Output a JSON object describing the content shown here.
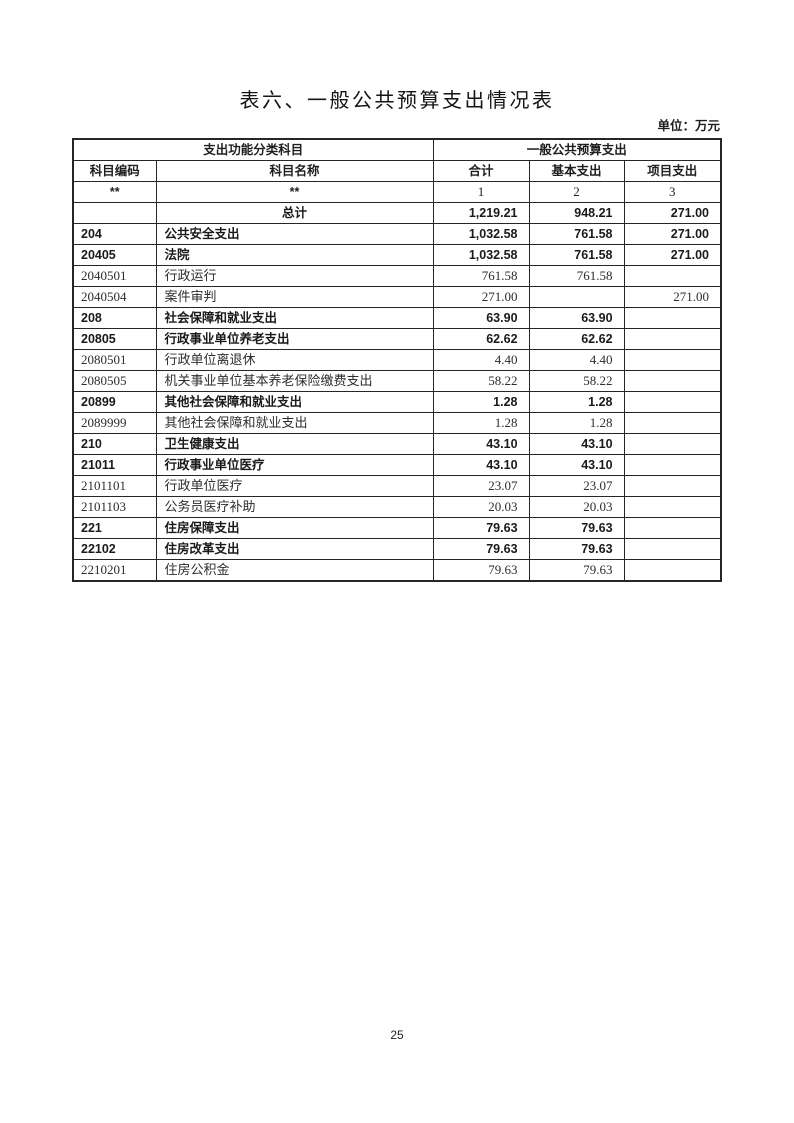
{
  "page": {
    "title": "表六、一般公共预算支出情况表",
    "unit_label": "单位：万元",
    "page_number": "25"
  },
  "table": {
    "group_headers": {
      "left": "支出功能分类科目",
      "right": "一般公共预算支出"
    },
    "columns": [
      "科目编码",
      "科目名称",
      "合计",
      "基本支出",
      "项目支出"
    ],
    "code_row": [
      "**",
      "**",
      "1",
      "2",
      "3"
    ],
    "rows": [
      {
        "code": "",
        "name": "总计",
        "total": "1,219.21",
        "basic": "948.21",
        "project": "271.00",
        "emphasis": true,
        "name_align": "center"
      },
      {
        "code": "204",
        "name": "公共安全支出",
        "total": "1,032.58",
        "basic": "761.58",
        "project": "271.00",
        "emphasis": true
      },
      {
        "code": "20405",
        "name": "法院",
        "total": "1,032.58",
        "basic": "761.58",
        "project": "271.00",
        "emphasis": true
      },
      {
        "code": "2040501",
        "name": "行政运行",
        "total": "761.58",
        "basic": "761.58",
        "project": "",
        "emphasis": false
      },
      {
        "code": "2040504",
        "name": "案件审判",
        "total": "271.00",
        "basic": "",
        "project": "271.00",
        "emphasis": false
      },
      {
        "code": "208",
        "name": "社会保障和就业支出",
        "total": "63.90",
        "basic": "63.90",
        "project": "",
        "emphasis": true
      },
      {
        "code": "20805",
        "name": "行政事业单位养老支出",
        "total": "62.62",
        "basic": "62.62",
        "project": "",
        "emphasis": true
      },
      {
        "code": "2080501",
        "name": "行政单位离退休",
        "total": "4.40",
        "basic": "4.40",
        "project": "",
        "emphasis": false
      },
      {
        "code": "2080505",
        "name": "机关事业单位基本养老保险缴费支出",
        "total": "58.22",
        "basic": "58.22",
        "project": "",
        "emphasis": false
      },
      {
        "code": "20899",
        "name": "其他社会保障和就业支出",
        "total": "1.28",
        "basic": "1.28",
        "project": "",
        "emphasis": true
      },
      {
        "code": "2089999",
        "name": "其他社会保障和就业支出",
        "total": "1.28",
        "basic": "1.28",
        "project": "",
        "emphasis": false
      },
      {
        "code": "210",
        "name": "卫生健康支出",
        "total": "43.10",
        "basic": "43.10",
        "project": "",
        "emphasis": true
      },
      {
        "code": "21011",
        "name": "行政事业单位医疗",
        "total": "43.10",
        "basic": "43.10",
        "project": "",
        "emphasis": true
      },
      {
        "code": "2101101",
        "name": "行政单位医疗",
        "total": "23.07",
        "basic": "23.07",
        "project": "",
        "emphasis": false
      },
      {
        "code": "2101103",
        "name": "公务员医疗补助",
        "total": "20.03",
        "basic": "20.03",
        "project": "",
        "emphasis": false
      },
      {
        "code": "221",
        "name": "住房保障支出",
        "total": "79.63",
        "basic": "79.63",
        "project": "",
        "emphasis": true
      },
      {
        "code": "22102",
        "name": "住房改革支出",
        "total": "79.63",
        "basic": "79.63",
        "project": "",
        "emphasis": true
      },
      {
        "code": "2210201",
        "name": "住房公积金",
        "total": "79.63",
        "basic": "79.63",
        "project": "",
        "emphasis": false
      }
    ]
  }
}
